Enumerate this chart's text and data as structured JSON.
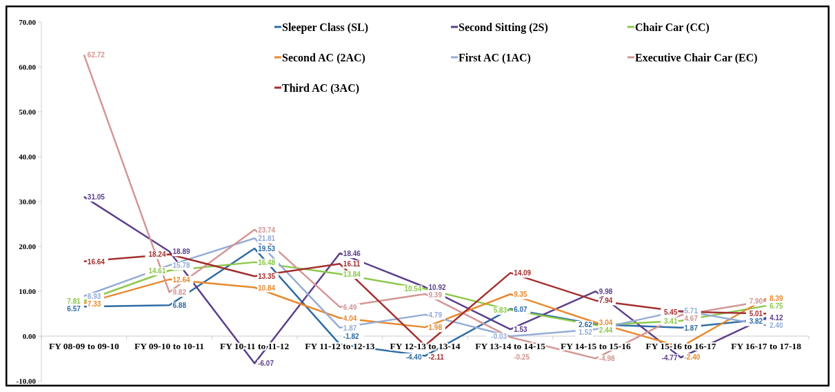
{
  "chart_data": {
    "type": "line",
    "categories": [
      "FY 08-09 to 09-10",
      "FY 09-10 to 10-11",
      "FY 10-11 to 11-12",
      "FY 11-12 to 12-13",
      "FY 12-13 to 13-14",
      "FY 13-14 to 14-15",
      "FY 14-15 to 15-16",
      "FY 15-16 to 16-17",
      "FY 16-17 to 17-18"
    ],
    "series": [
      {
        "name": "Sleeper Class (SL)",
        "color": "#2e6ca4",
        "values": [
          6.57,
          6.88,
          19.53,
          -1.82,
          -4.4,
          6.07,
          2.62,
          1.87,
          3.82
        ],
        "value_labels": [
          "6.57",
          "6.88",
          "19.53",
          "-1.82",
          "-4.40",
          "6.07",
          "2.62",
          "1.87",
          "3.82"
        ]
      },
      {
        "name": "Second Sitting (2S)",
        "color": "#5b3f8c",
        "values": [
          31.05,
          18.89,
          -6.07,
          18.46,
          10.92,
          1.53,
          9.98,
          -4.77,
          4.12
        ],
        "value_labels": [
          "31.05",
          "18.89",
          "-6.07",
          "18.46",
          "10.92",
          "1.53",
          "9.98",
          "-4.77",
          "4.12"
        ]
      },
      {
        "name": "Chair Car (CC)",
        "color": "#8cc84b",
        "values": [
          7.81,
          14.61,
          16.48,
          13.84,
          10.54,
          5.83,
          2.44,
          3.41,
          6.75
        ],
        "value_labels": [
          "7.81",
          "14.61",
          "16.48",
          "13.84",
          "10.54",
          "5.83",
          "2.44",
          "3.41",
          "6.75"
        ]
      },
      {
        "name": "Second AC (2AC)",
        "color": "#e8892f",
        "values": [
          7.33,
          12.64,
          10.84,
          4.04,
          1.98,
          9.35,
          3.04,
          -2.4,
          8.39
        ],
        "value_labels": [
          "7.33",
          "12.64",
          "10.84",
          "4.04",
          "1.98",
          "9.35",
          "3.04",
          "-2.40",
          "8.39"
        ]
      },
      {
        "name": "First AC (1AC)",
        "color": "#94acd6",
        "values": [
          8.93,
          15.78,
          21.81,
          1.87,
          4.79,
          -0.03,
          1.52,
          5.71,
          2.4
        ],
        "value_labels": [
          "8.93",
          "15.78",
          "21.81",
          "1.87",
          "4.79",
          "-0.03",
          "1.52",
          "5.71",
          "2.40"
        ]
      },
      {
        "name": "Executive Chair Car (EC)",
        "color": "#d39594",
        "values": [
          62.72,
          9.82,
          23.74,
          6.49,
          9.39,
          -0.25,
          -4.98,
          4.67,
          7.9
        ],
        "value_labels": [
          "62.72",
          "9.82",
          "23.74",
          "6.49",
          "9.39",
          "-0.25",
          "-4.98",
          "4.67",
          "7.90"
        ]
      },
      {
        "name": "Third AC (3AC)",
        "color": "#a3302f",
        "values": [
          16.64,
          18.24,
          13.35,
          16.11,
          -2.11,
          14.09,
          7.94,
          5.45,
          5.01
        ],
        "value_labels": [
          "16.64",
          "18.24",
          "13.35",
          "16.11",
          "-2.11",
          "14.09",
          "7.94",
          "5.45",
          "5.01"
        ]
      }
    ],
    "ylim": [
      -10,
      70
    ],
    "yticks": [
      {
        "value": -10,
        "label": "-10.00"
      },
      {
        "value": 0,
        "label": "0.00"
      },
      {
        "value": 10,
        "label": "10.00"
      },
      {
        "value": 20,
        "label": "20.00"
      },
      {
        "value": 30,
        "label": "30.00"
      },
      {
        "value": 40,
        "label": "40.00"
      },
      {
        "value": 50,
        "label": "50.00"
      },
      {
        "value": 60,
        "label": "60.00"
      },
      {
        "value": 70,
        "label": "70.00"
      }
    ],
    "grid": false,
    "legend": "top",
    "marker": "none",
    "line_style": "solid"
  }
}
